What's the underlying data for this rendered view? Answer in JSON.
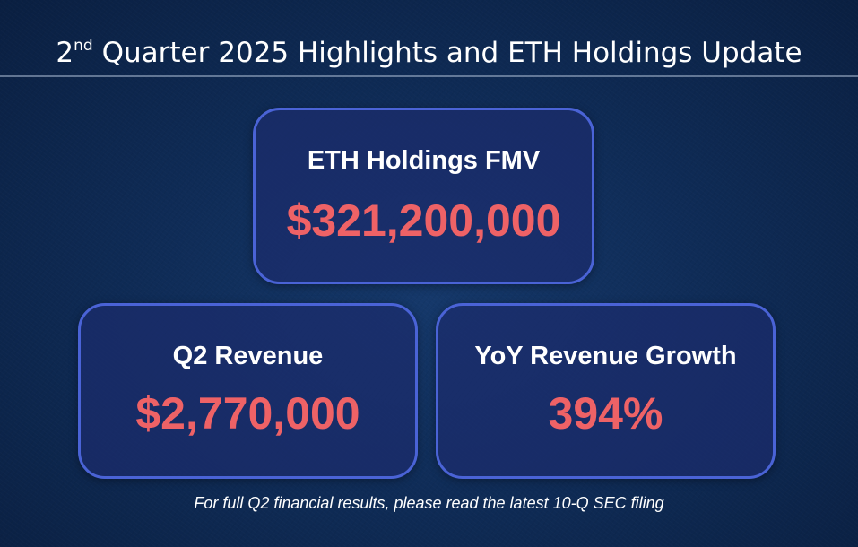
{
  "header": {
    "title_prefix": "2",
    "title_superscript": "nd",
    "title_rest": " Quarter 2025 Highlights and ETH Holdings Update"
  },
  "cards": {
    "eth_holdings": {
      "label": "ETH Holdings FMV",
      "value": "$321,200,000"
    },
    "q2_revenue": {
      "label": "Q2 Revenue",
      "value": "$2,770,000"
    },
    "yoy_growth": {
      "label": "YoY Revenue Growth",
      "value": "394%"
    }
  },
  "footnote": "For full Q2 financial results, please read the latest 10-Q SEC filing",
  "colors": {
    "background": "#0f2c57",
    "card_border": "#4a63d6",
    "value_text": "#ee6266"
  }
}
